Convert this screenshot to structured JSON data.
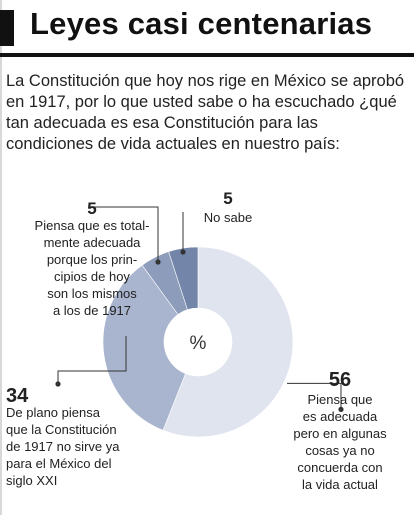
{
  "title": "Leyes casi centenarias",
  "question": "La Constitución que hoy nos rige en México se aprobó en 1917, por lo que usted sabe o ha escuchado ¿qué tan adecuada es esa Constitución para las condiciones de vida actuales en nuestro país:",
  "center_label": "%",
  "colors": {
    "accent": "#111111",
    "leader": "#333333"
  },
  "chart_data": {
    "type": "pie",
    "title": "",
    "unit": "%",
    "donut": true,
    "slices": [
      {
        "value": 56,
        "label_lines": [
          "Piensa que",
          "es adecuada",
          "pero en algunas",
          "cosas ya no",
          "concuerda con",
          "la vida actual"
        ],
        "color": "#dfe4ee"
      },
      {
        "value": 34,
        "label_lines": [
          "De plano piensa",
          "que la Constitución",
          "de 1917 no sirve ya",
          "para el México del",
          "siglo XXI"
        ],
        "color": "#a9b5ce"
      },
      {
        "value": 5,
        "label_lines": [
          "Piensa que es total-",
          "mente adecuada",
          "porque los prin-",
          "cipios de hoy",
          "son los mismos",
          "a los de 1917"
        ],
        "color": "#8d9cbb"
      },
      {
        "value": 5,
        "label_lines": [
          "No sabe"
        ],
        "color": "#7485aa"
      }
    ]
  }
}
